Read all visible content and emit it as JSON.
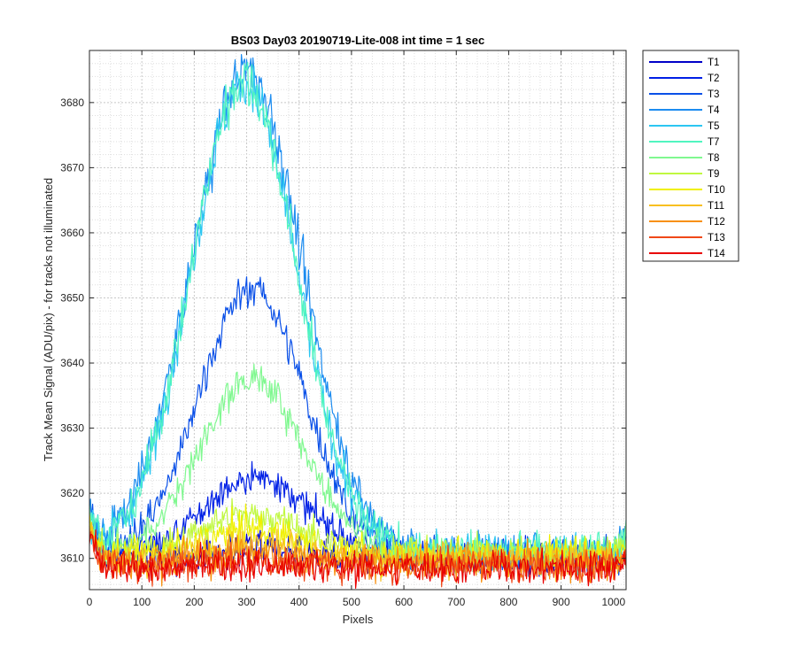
{
  "chart_data": {
    "type": "line",
    "title": "BS03 Day03 20190719-Lite-008 int time = 1 sec",
    "xlabel": "Pixels",
    "ylabel": "Track Mean Signal (ADU/pix) - for tracks not illuminated",
    "xlim": [
      0,
      1024
    ],
    "ylim": [
      3605.2,
      3688.0
    ],
    "xticks": [
      0,
      100,
      200,
      300,
      400,
      500,
      600,
      700,
      800,
      900,
      1000
    ],
    "yticks": [
      3610,
      3620,
      3630,
      3640,
      3650,
      3660,
      3670,
      3680
    ],
    "grid": "major and minor, dotted",
    "legend_position": "outside-top-right",
    "series": [
      {
        "name": "T1",
        "color": "#0000c8",
        "baseline": 3610.0,
        "peak_center": 330,
        "peak_width": 80,
        "peak_amp": 1.5,
        "noise": 1.2
      },
      {
        "name": "T2",
        "color": "#0020e6",
        "baseline": 3610.6,
        "peak_center": 320,
        "peak_width": 95,
        "peak_amp": 12.0,
        "noise": 1.2
      },
      {
        "name": "T3",
        "color": "#0a50e8",
        "baseline": 3610.5,
        "peak_center": 310,
        "peak_width": 100,
        "peak_amp": 41.0,
        "noise": 1.3
      },
      {
        "name": "T4",
        "color": "#1c8cf0",
        "baseline": 3611.0,
        "peak_center": 300,
        "peak_width": 105,
        "peak_amp": 74.0,
        "noise": 1.5
      },
      {
        "name": "T5",
        "color": "#2cc6f2",
        "baseline": 3611.0,
        "peak_center": 295,
        "peak_width": 100,
        "peak_amp": 72.0,
        "noise": 1.5
      },
      {
        "name": "T7",
        "color": "#50f5c0",
        "baseline": 3611.0,
        "peak_center": 295,
        "peak_width": 100,
        "peak_amp": 72.5,
        "noise": 1.5
      },
      {
        "name": "T8",
        "color": "#80f890",
        "baseline": 3610.5,
        "peak_center": 310,
        "peak_width": 100,
        "peak_amp": 27.0,
        "noise": 1.3
      },
      {
        "name": "T9",
        "color": "#c0f840",
        "baseline": 3610.8,
        "peak_center": 310,
        "peak_width": 90,
        "peak_amp": 6.0,
        "noise": 1.3
      },
      {
        "name": "T10",
        "color": "#f0f000",
        "baseline": 3610.5,
        "peak_center": 310,
        "peak_width": 85,
        "peak_amp": 4.0,
        "noise": 1.3
      },
      {
        "name": "T11",
        "color": "#f8c020",
        "baseline": 3609.8,
        "peak_center": 310,
        "peak_width": 80,
        "peak_amp": 2.5,
        "noise": 1.3
      },
      {
        "name": "T12",
        "color": "#f89010",
        "baseline": 3609.3,
        "peak_center": 310,
        "peak_width": 80,
        "peak_amp": 1.5,
        "noise": 1.4
      },
      {
        "name": "T13",
        "color": "#f04818",
        "baseline": 3608.9,
        "peak_center": 310,
        "peak_width": 80,
        "peak_amp": 0.8,
        "noise": 1.3
      },
      {
        "name": "T14",
        "color": "#e80000",
        "baseline": 3608.6,
        "peak_center": 310,
        "peak_width": 80,
        "peak_amp": 0.5,
        "noise": 1.3
      }
    ]
  }
}
